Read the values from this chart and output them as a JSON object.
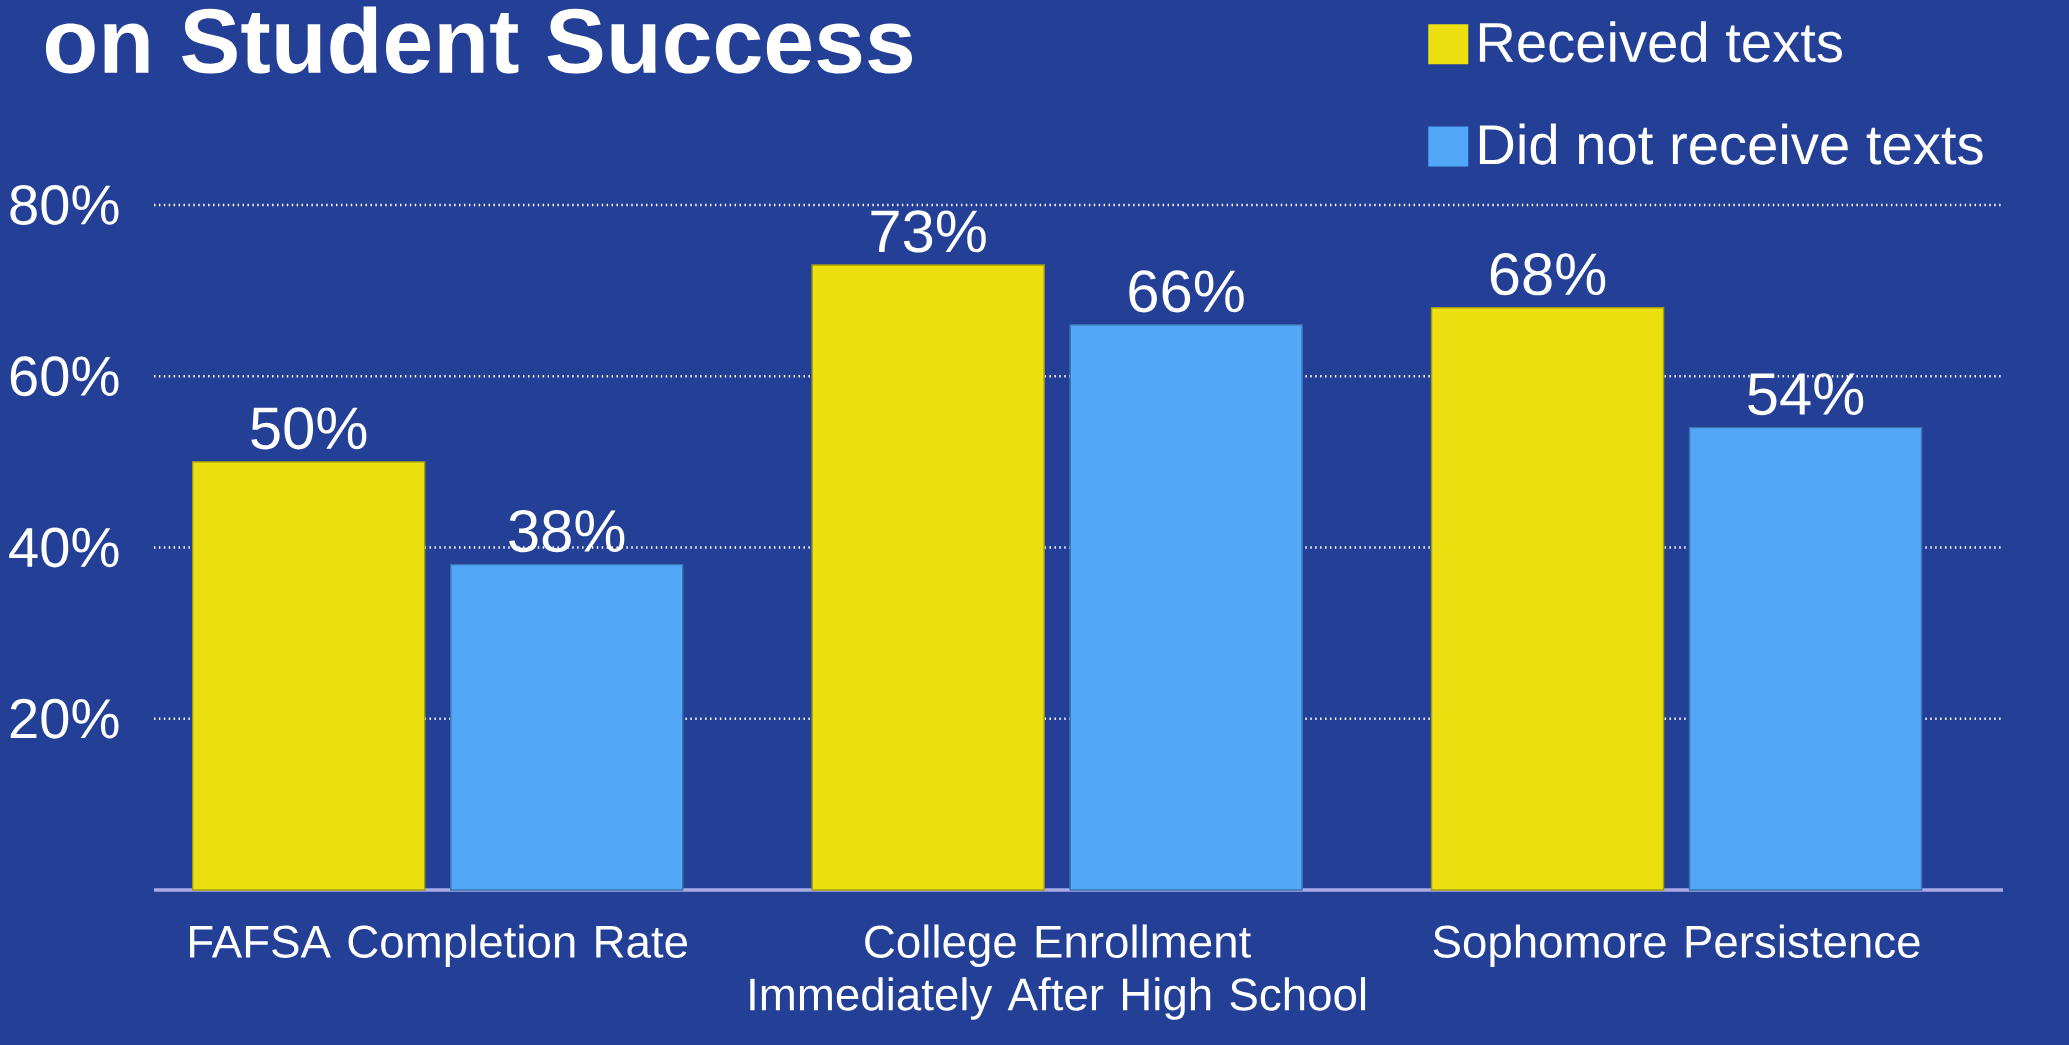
{
  "chart_data": {
    "type": "bar",
    "title": "on Student Success",
    "categories": [
      "FAFSA Completion Rate",
      "College Enrollment Immediately After High School",
      "Sophomore Persistence"
    ],
    "series": [
      {
        "name": "Received texts",
        "color": "#ede011",
        "values": [
          50,
          73,
          68
        ],
        "value_labels": [
          "50%",
          "73%",
          "68%"
        ]
      },
      {
        "name": "Did not receive texts",
        "color": "#53a7f7",
        "values": [
          38,
          66,
          54
        ],
        "value_labels": [
          "38%",
          "66%",
          "54%"
        ]
      }
    ],
    "ylim": [
      0,
      80
    ],
    "yticks": [
      {
        "value": 20,
        "label": "20%"
      },
      {
        "value": 40,
        "label": "40%"
      },
      {
        "value": 60,
        "label": "60%"
      },
      {
        "value": 80,
        "label": "80%"
      }
    ],
    "grid": "y",
    "legend": "top right"
  }
}
